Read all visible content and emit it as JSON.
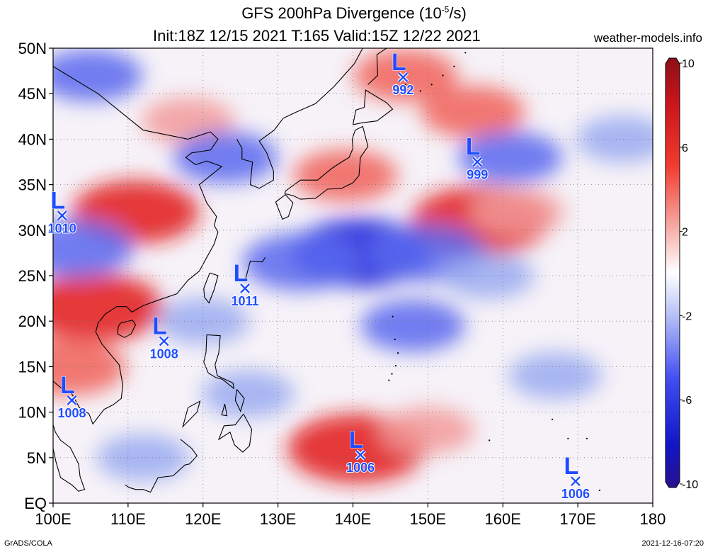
{
  "title": {
    "line1_prefix": "GFS 200hPa Divergence (10",
    "line1_exp": "-5",
    "line1_suffix": "/s)",
    "line2": "Init:18Z 12/15 2021 T:165 Valid:15Z 12/22 2021"
  },
  "site_credit": "weather-models.info",
  "footer": {
    "left": "GrADS/COLA",
    "right": "2021-12-16-07:20"
  },
  "map": {
    "lon_range": [
      100,
      180
    ],
    "lat_range": [
      0,
      50
    ],
    "lon_ticks": [
      {
        "value": 100,
        "label": "100E"
      },
      {
        "value": 110,
        "label": "110E"
      },
      {
        "value": 120,
        "label": "120E"
      },
      {
        "value": 130,
        "label": "130E"
      },
      {
        "value": 140,
        "label": "140E"
      },
      {
        "value": 150,
        "label": "150E"
      },
      {
        "value": 160,
        "label": "160E"
      },
      {
        "value": 170,
        "label": "170E"
      },
      {
        "value": 180,
        "label": "180"
      }
    ],
    "lat_ticks": [
      {
        "value": 0,
        "label": "EQ"
      },
      {
        "value": 5,
        "label": "5N"
      },
      {
        "value": 10,
        "label": "10N"
      },
      {
        "value": 15,
        "label": "15N"
      },
      {
        "value": 20,
        "label": "20N"
      },
      {
        "value": 25,
        "label": "25N"
      },
      {
        "value": 30,
        "label": "30N"
      },
      {
        "value": 35,
        "label": "35N"
      },
      {
        "value": 40,
        "label": "40N"
      },
      {
        "value": 45,
        "label": "45N"
      },
      {
        "value": 50,
        "label": "50N"
      }
    ],
    "grid": true,
    "low_marker_label": "L",
    "lows": [
      {
        "lon": 146.7,
        "lat": 46.8,
        "pressure": "992"
      },
      {
        "lon": 156.6,
        "lat": 37.5,
        "pressure": "999"
      },
      {
        "lon": 101.2,
        "lat": 31.6,
        "pressure": "1010"
      },
      {
        "lon": 125.6,
        "lat": 23.6,
        "pressure": "1011"
      },
      {
        "lon": 114.8,
        "lat": 17.8,
        "pressure": "1008"
      },
      {
        "lon": 102.5,
        "lat": 11.3,
        "pressure": "1008"
      },
      {
        "lon": 141.0,
        "lat": 5.3,
        "pressure": "1006"
      },
      {
        "lon": 169.7,
        "lat": 2.4,
        "pressure": "1006"
      }
    ],
    "divergence_features": [
      {
        "lon": 157,
        "lat": 31,
        "value": 7
      },
      {
        "lon": 105.5,
        "lat": 21.5,
        "value": 7
      },
      {
        "lon": 111,
        "lat": 32,
        "value": 6
      },
      {
        "lon": 139,
        "lat": 36,
        "value": 4
      },
      {
        "lon": 147,
        "lat": 47,
        "value": 4
      },
      {
        "lon": 156,
        "lat": 43,
        "value": 4
      },
      {
        "lon": 140.5,
        "lat": 6,
        "value": 7
      },
      {
        "lon": 102,
        "lat": 15,
        "value": 5
      },
      {
        "lon": 150,
        "lat": 8,
        "value": 3
      },
      {
        "lon": 118,
        "lat": 42,
        "value": 3
      },
      {
        "lon": 162,
        "lat": 32,
        "value": 3
      },
      {
        "lon": 141,
        "lat": 27.5,
        "value": -7
      },
      {
        "lon": 133,
        "lat": 26.5,
        "value": -5
      },
      {
        "lon": 150,
        "lat": 27.5,
        "value": -5
      },
      {
        "lon": 123,
        "lat": 38,
        "value": -4
      },
      {
        "lon": 161,
        "lat": 38,
        "value": -4
      },
      {
        "lon": 120,
        "lat": 20,
        "value": -3
      },
      {
        "lon": 148,
        "lat": 19.5,
        "value": -4
      },
      {
        "lon": 158,
        "lat": 25,
        "value": -3
      },
      {
        "lon": 103,
        "lat": 28,
        "value": -5
      },
      {
        "lon": 105,
        "lat": 47,
        "value": -4
      },
      {
        "lon": 126,
        "lat": 12,
        "value": -3
      },
      {
        "lon": 112,
        "lat": 5,
        "value": -3
      },
      {
        "lon": 167,
        "lat": 14,
        "value": -3
      },
      {
        "lon": 176,
        "lat": 40,
        "value": -3
      }
    ]
  },
  "colorbar": {
    "labels": [
      "10",
      "6",
      "2",
      "-2",
      "-6",
      "-10"
    ],
    "colors": {
      "max": "#8b0f18",
      "strong_pos": "#e21a1a",
      "weak_pos": "#f29a9a",
      "zero": "#ffffff",
      "weak_neg": "#9aaaf0",
      "strong_neg": "#1522dd",
      "min": "#2a0f8e"
    }
  }
}
